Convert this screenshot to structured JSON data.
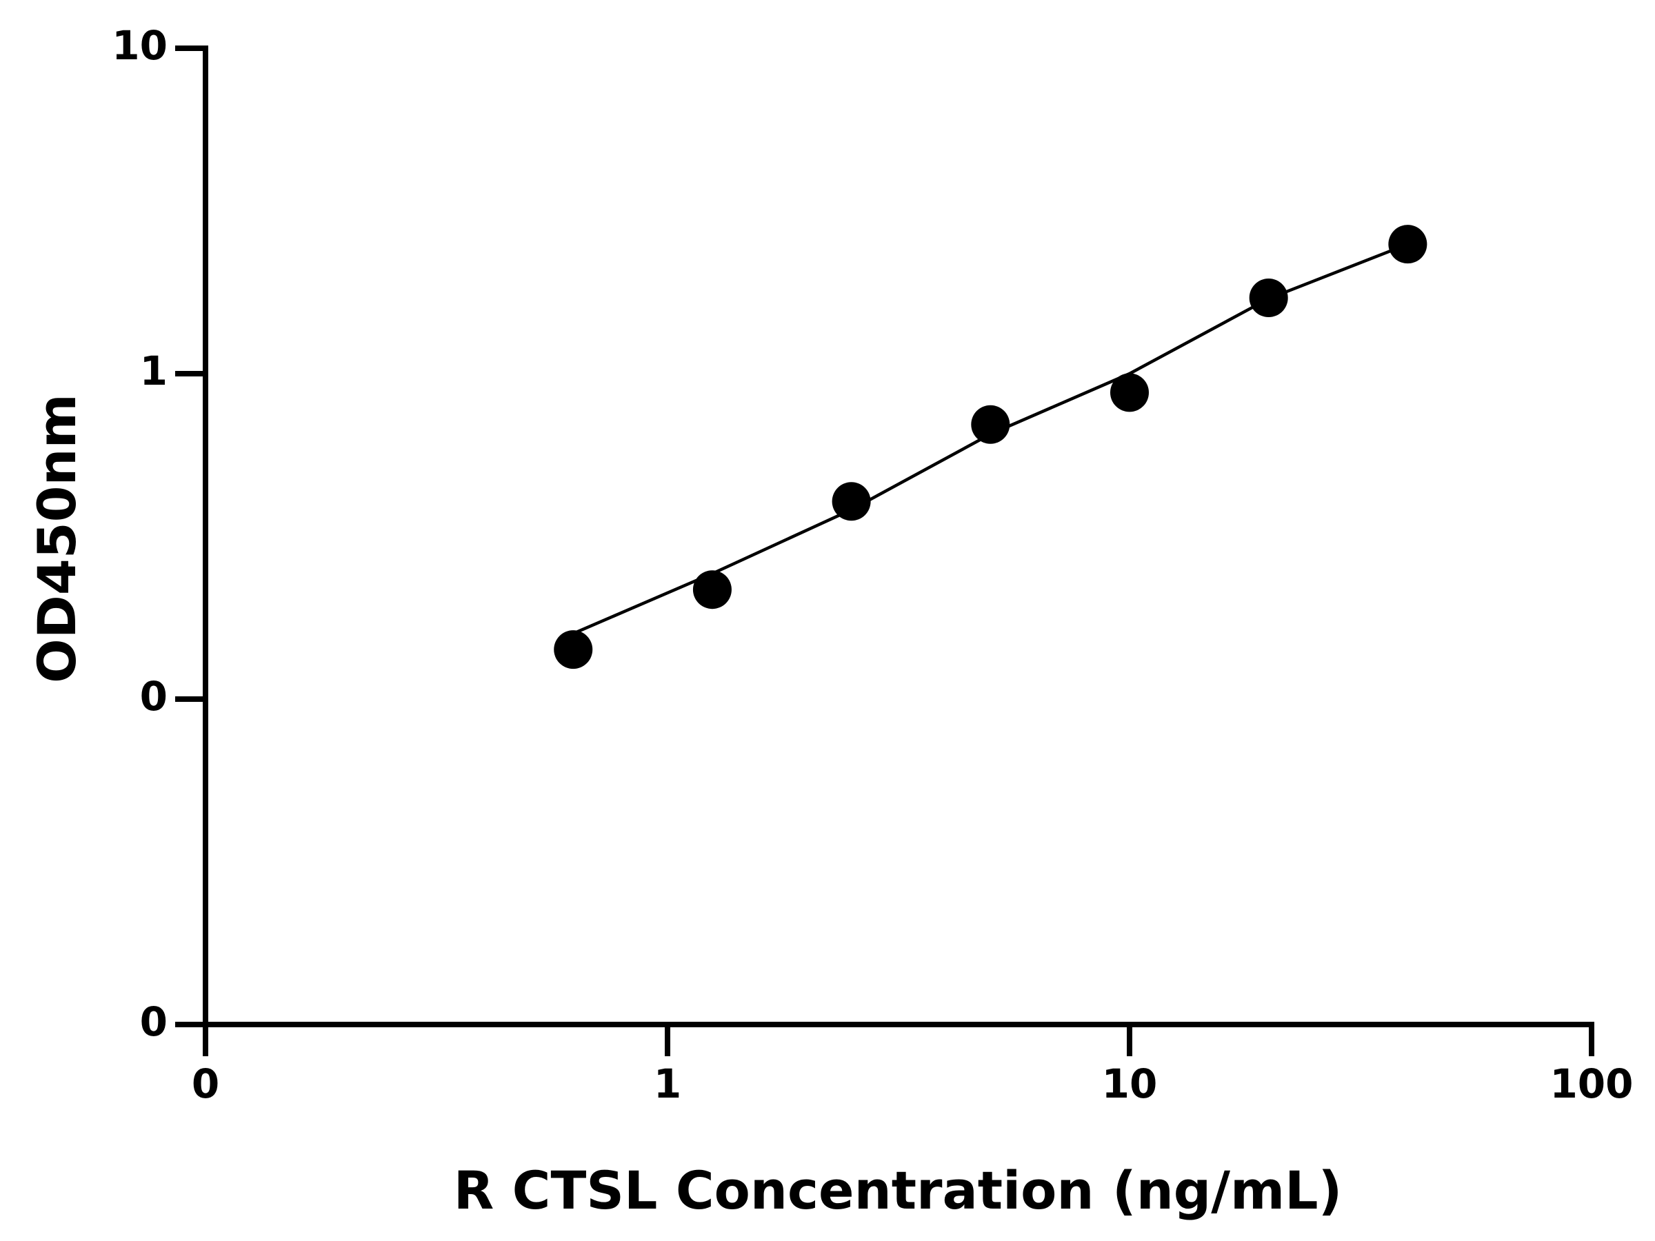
{
  "chart_data": {
    "type": "scatter",
    "xlabel": "R CTSL Concentration (ng/mL)",
    "ylabel": "OD450nm",
    "xscale": "log",
    "yscale": "log",
    "xlim": [
      0.1,
      100
    ],
    "ylim": [
      0.01,
      10
    ],
    "xticks": [
      {
        "value": 0.1,
        "label": "0"
      },
      1,
      10,
      100
    ],
    "yticks": [
      {
        "value": 0.01,
        "label": "0"
      },
      {
        "value": 0.1,
        "label": "0"
      },
      1,
      10
    ],
    "series": [
      {
        "type": "scatter",
        "color": "#000000",
        "x": [
          0.625,
          1.25,
          2.5,
          5,
          10,
          20,
          40
        ],
        "values": [
          0.142,
          0.217,
          0.405,
          0.698,
          0.875,
          1.71,
          2.5
        ]
      },
      {
        "type": "line",
        "color": "#000000",
        "x": [
          0.625,
          1.25,
          2.5,
          5,
          10,
          20,
          40
        ],
        "values": [
          0.159,
          0.243,
          0.382,
          0.652,
          1.0,
          1.7,
          2.5
        ]
      }
    ]
  }
}
